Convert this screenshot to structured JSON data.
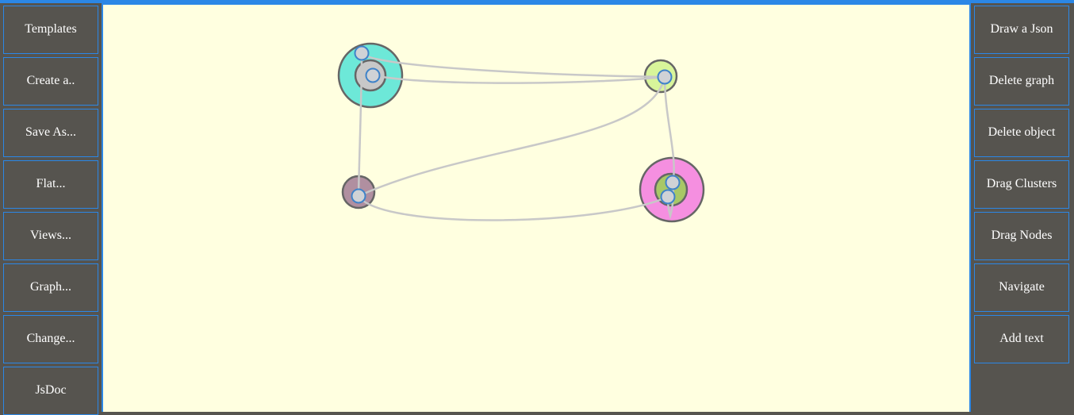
{
  "left_menu": {
    "templates": "Templates",
    "create": "Create a..",
    "save_as": "Save As...",
    "flat": "Flat...",
    "views": "Views...",
    "graph": "Graph...",
    "change": "Change...",
    "jsdoc": "JsDoc"
  },
  "right_menu": {
    "draw_json": "Draw a Json",
    "delete_graph": "Delete graph",
    "delete_object": "Delete object",
    "drag_clusters": "Drag Clusters",
    "drag_nodes": "Drag Nodes",
    "navigate": "Navigate",
    "add_text": "Add text"
  },
  "colors": {
    "accent": "#2b87e6",
    "panel": "#56544f",
    "canvas": "#ffffe0",
    "cluster_teal": "#6de8d8",
    "cluster_lime": "#d8f59a",
    "cluster_mauve": "#b08fa0",
    "cluster_pink": "#f58fe0",
    "cluster_green": "#a8c866",
    "node_fill": "#cfd2d6",
    "edge": "#c8c8c8"
  }
}
